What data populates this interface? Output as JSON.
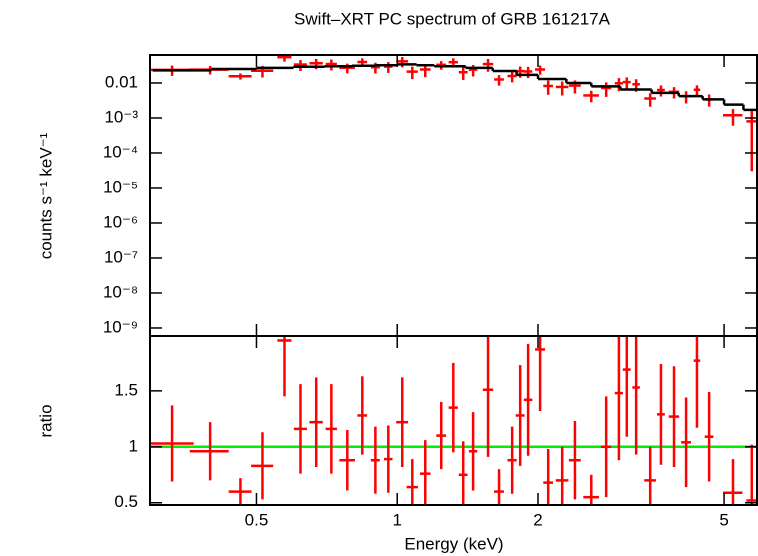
{
  "chart_data": [
    {
      "type": "errorbar",
      "title": "Swift–XRT PC spectrum of GRB 161217A",
      "ylabel": "counts s⁻¹ keV⁻¹",
      "xlog": true,
      "ylog": true,
      "xlim": [
        0.296,
        5.88
      ],
      "ylim": [
        5.9e-10,
        0.063
      ],
      "xticks": [
        0.5,
        1,
        2,
        5
      ],
      "yticks": [
        0.01,
        {
          "value": 0.001,
          "label": "10⁻³"
        },
        {
          "value": 0.0001,
          "label": "10⁻⁴"
        },
        {
          "value": 1e-05,
          "label": "10⁻⁵"
        },
        {
          "value": 1e-06,
          "label": "10⁻⁶"
        },
        {
          "value": 1e-07,
          "label": "10⁻⁷"
        },
        {
          "value": 1e-08,
          "label": "10⁻⁸"
        },
        {
          "value": 1e-09,
          "label": "10⁻⁹"
        }
      ],
      "data": {
        "color": "#ff0000",
        "x": [
          0.33,
          0.398,
          0.462,
          0.515,
          0.574,
          0.621,
          0.671,
          0.723,
          0.782,
          0.842,
          0.898,
          0.957,
          1.025,
          1.077,
          1.148,
          1.242,
          1.318,
          1.384,
          1.453,
          1.564,
          1.651,
          1.761,
          1.832,
          1.905,
          2.021,
          2.103,
          2.253,
          2.399,
          2.6,
          2.798,
          2.979,
          3.097,
          3.243,
          3.475,
          3.664,
          3.908,
          4.147,
          4.375,
          4.645,
          5.224,
          5.73
        ],
        "xerr": [
          0.037,
          0.038,
          0.026,
          0.028,
          0.02,
          0.02,
          0.022,
          0.02,
          0.03,
          0.02,
          0.02,
          0.02,
          0.03,
          0.03,
          0.03,
          0.03,
          0.03,
          0.03,
          0.03,
          0.04,
          0.04,
          0.04,
          0.04,
          0.04,
          0.05,
          0.05,
          0.07,
          0.07,
          0.1,
          0.07,
          0.06,
          0.06,
          0.06,
          0.1,
          0.07,
          0.1,
          0.1,
          0.07,
          0.1,
          0.25,
          0.15
        ],
        "values": [
          0.0237,
          0.024,
          0.0156,
          0.0224,
          0.0546,
          0.0336,
          0.0366,
          0.0348,
          0.0273,
          0.0397,
          0.0282,
          0.0294,
          0.0415,
          0.0211,
          0.0243,
          0.033,
          0.0392,
          0.0203,
          0.024,
          0.0347,
          0.0126,
          0.0158,
          0.0218,
          0.0213,
          0.0243,
          0.0082,
          0.0077,
          0.0084,
          0.0044,
          0.0072,
          0.0098,
          0.0106,
          0.0092,
          0.0036,
          0.0063,
          0.0056,
          0.0042,
          0.0064,
          0.0034,
          0.0012,
          0.0008
        ],
        "yerr": [
          0.0078,
          0.0065,
          0.0031,
          0.0081,
          0.014,
          0.0116,
          0.012,
          0.012,
          0.0084,
          0.011,
          0.0096,
          0.01,
          0.0136,
          0.0082,
          0.0096,
          0.009,
          0.0116,
          0.0081,
          0.0087,
          0.0138,
          0.0042,
          0.0054,
          0.0077,
          0.0075,
          0.0071,
          0.0036,
          0.0033,
          0.0034,
          0.0016,
          0.0032,
          0.004,
          0.0038,
          0.0036,
          0.0015,
          0.0022,
          0.002,
          0.0016,
          0.0022,
          0.0013,
          0.0006,
          0.00077
        ]
      },
      "model": {
        "color": "#000000",
        "x": [
          0.3,
          0.4,
          0.5,
          0.6,
          0.7,
          0.8,
          0.9,
          1.0,
          1.1,
          1.2,
          1.4,
          1.6,
          1.8,
          2.0,
          2.3,
          2.6,
          3.0,
          3.5,
          4.0,
          4.5,
          5.0,
          5.5,
          5.88
        ],
        "values": [
          0.023,
          0.025,
          0.027,
          0.029,
          0.03,
          0.031,
          0.032,
          0.034,
          0.032,
          0.03,
          0.027,
          0.022,
          0.017,
          0.013,
          0.01,
          0.008,
          0.0065,
          0.0052,
          0.0042,
          0.0034,
          0.0024,
          0.0017,
          0.0016
        ]
      }
    },
    {
      "type": "errorbar",
      "xlabel": "Energy (keV)",
      "ylabel": "ratio",
      "xlog": true,
      "ylog": false,
      "xlim": [
        0.296,
        5.88
      ],
      "ylim": [
        0.48,
        1.99
      ],
      "xticks": [
        0.5,
        1,
        2,
        5
      ],
      "yticks": [
        0.5,
        1,
        1.5
      ],
      "reference": {
        "value": 1,
        "color": "#00ee00"
      },
      "data": {
        "color": "#ff0000",
        "x": [
          0.33,
          0.398,
          0.462,
          0.515,
          0.574,
          0.621,
          0.671,
          0.723,
          0.782,
          0.842,
          0.898,
          0.957,
          1.025,
          1.077,
          1.148,
          1.242,
          1.318,
          1.384,
          1.453,
          1.564,
          1.651,
          1.761,
          1.832,
          1.905,
          2.021,
          2.103,
          2.253,
          2.399,
          2.6,
          2.798,
          2.979,
          3.097,
          3.243,
          3.475,
          3.664,
          3.908,
          4.147,
          4.375,
          4.645,
          5.224,
          5.73
        ],
        "xerr": [
          0.037,
          0.038,
          0.026,
          0.028,
          0.02,
          0.02,
          0.022,
          0.02,
          0.03,
          0.02,
          0.02,
          0.02,
          0.03,
          0.03,
          0.03,
          0.03,
          0.03,
          0.03,
          0.03,
          0.04,
          0.04,
          0.04,
          0.04,
          0.04,
          0.05,
          0.05,
          0.07,
          0.07,
          0.1,
          0.07,
          0.06,
          0.06,
          0.06,
          0.1,
          0.07,
          0.1,
          0.1,
          0.07,
          0.1,
          0.25,
          0.15
        ],
        "values": [
          1.03,
          0.96,
          0.6,
          0.83,
          1.95,
          1.16,
          1.22,
          1.16,
          0.88,
          1.28,
          0.88,
          0.89,
          1.22,
          0.64,
          0.76,
          1.1,
          1.35,
          0.75,
          0.96,
          1.51,
          0.6,
          0.88,
          1.28,
          1.42,
          1.87,
          0.68,
          0.7,
          0.88,
          0.55,
          1.0,
          1.48,
          1.69,
          1.53,
          0.7,
          1.29,
          1.27,
          1.04,
          1.77,
          1.09,
          0.59,
          0.52
        ],
        "yerr": [
          0.34,
          0.26,
          0.12,
          0.3,
          0.5,
          0.4,
          0.4,
          0.4,
          0.27,
          0.35,
          0.3,
          0.3,
          0.4,
          0.25,
          0.3,
          0.3,
          0.4,
          0.3,
          0.35,
          0.6,
          0.2,
          0.3,
          0.45,
          0.5,
          0.55,
          0.3,
          0.3,
          0.35,
          0.2,
          0.45,
          0.6,
          0.6,
          0.6,
          0.3,
          0.45,
          0.45,
          0.4,
          0.6,
          0.4,
          0.3,
          0.5
        ]
      }
    }
  ]
}
